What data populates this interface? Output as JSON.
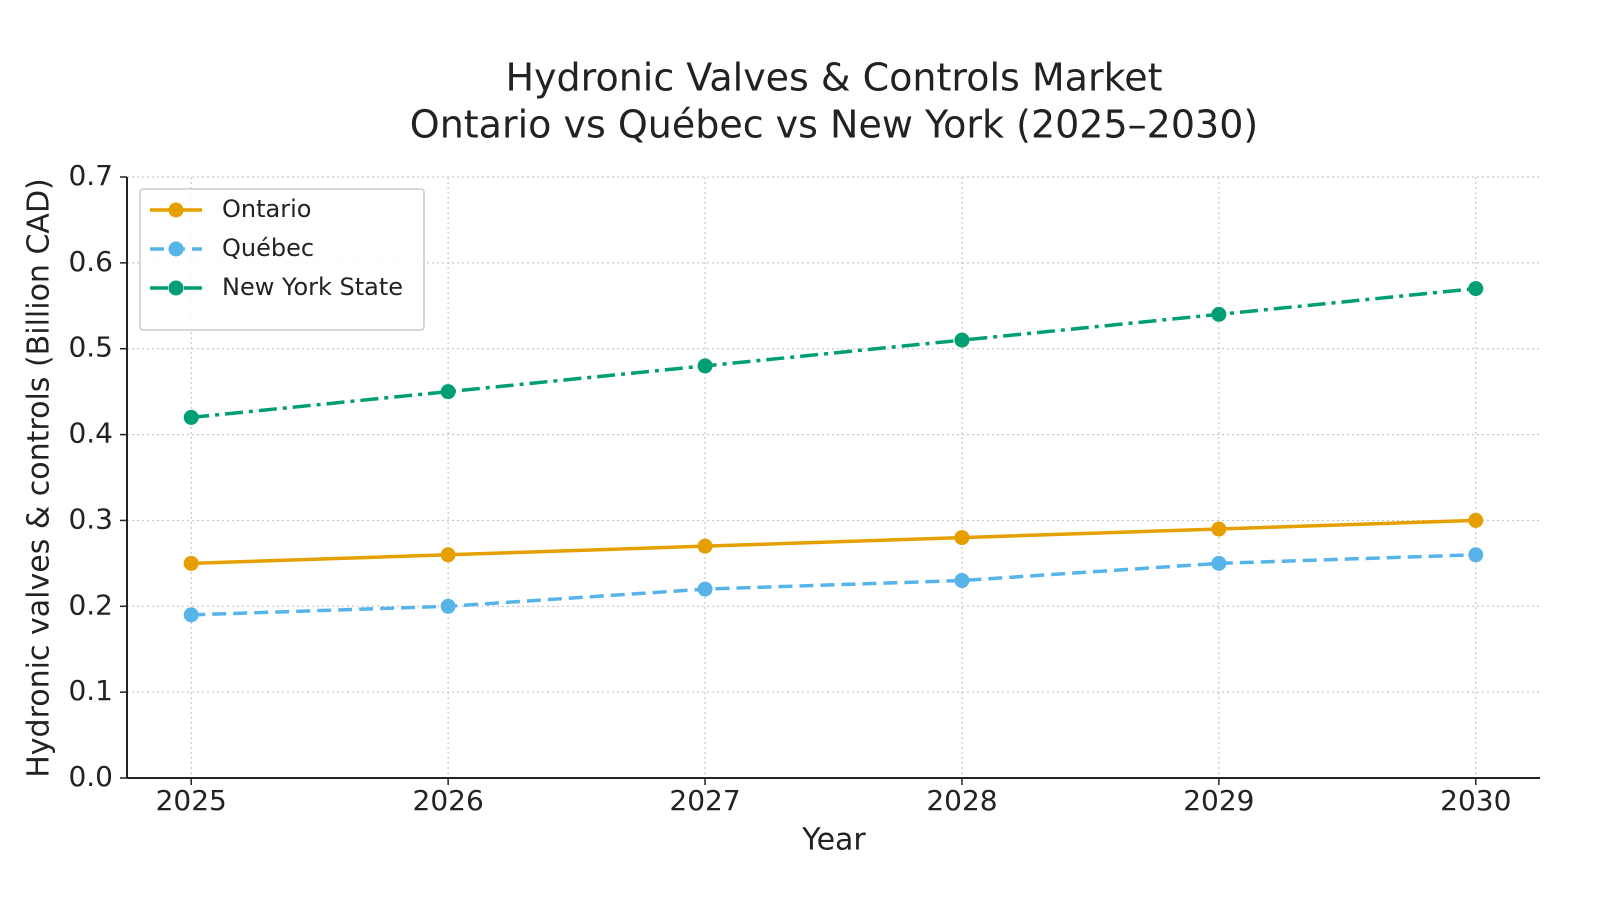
{
  "chart_data": {
    "type": "line",
    "title": "Hydronic Valves & Controls Market",
    "subtitle": "Ontario vs Québec vs New York (2025–2030)",
    "x_label": "Year",
    "y_label": "Hydronic valves & controls (Billion CAD)",
    "x": [
      2025,
      2026,
      2027,
      2028,
      2029,
      2030
    ],
    "series": [
      {
        "name": "Ontario",
        "color": "#e69f00",
        "linestyle": "solid",
        "values": [
          0.25,
          0.26,
          0.27,
          0.28,
          0.29,
          0.3
        ]
      },
      {
        "name": "Québec",
        "color": "#56b4e9",
        "linestyle": "dashed",
        "values": [
          0.19,
          0.2,
          0.22,
          0.23,
          0.25,
          0.26
        ]
      },
      {
        "name": "New York State",
        "color": "#009e73",
        "linestyle": "dashdot",
        "values": [
          0.42,
          0.45,
          0.48,
          0.51,
          0.54,
          0.57
        ]
      }
    ],
    "xlim": [
      2024.75,
      2030.25
    ],
    "xticks": [
      2025,
      2026,
      2027,
      2028,
      2029,
      2030
    ],
    "ylim": [
      0,
      0.7
    ],
    "yticks": [
      {
        "value": 0,
        "label": "0.0"
      },
      0.1,
      0.2,
      0.3,
      0.4,
      0.5,
      0.6,
      0.7
    ],
    "grid": true,
    "legend": "upper-left"
  }
}
